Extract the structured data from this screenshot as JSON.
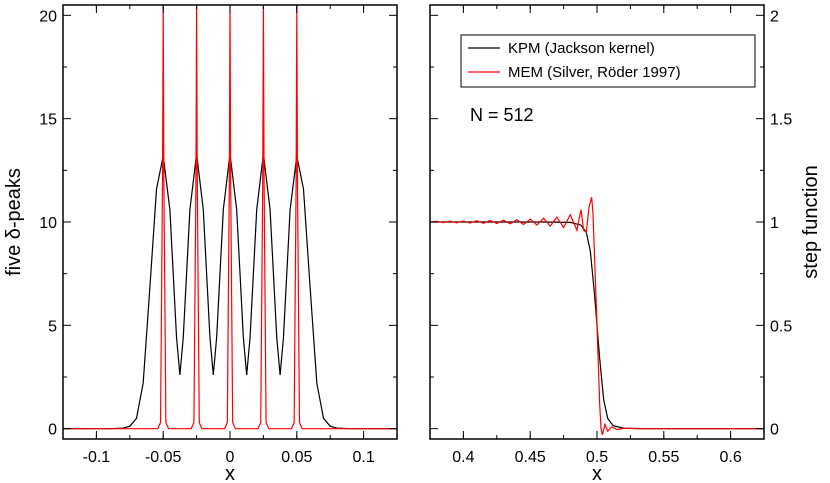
{
  "chart_data": [
    {
      "type": "line",
      "ylabel": "five δ-peaks",
      "xlabel": "x",
      "xlim": [
        -0.125,
        0.125
      ],
      "ylim": [
        -0.5,
        20.5
      ],
      "xticks": [
        -0.1,
        -0.05,
        0,
        0.05,
        0.1
      ],
      "xtick_labels": [
        "-0.1",
        "-0.05",
        "0",
        "0.05",
        "0.1"
      ],
      "yticks": [
        0,
        5,
        10,
        15,
        20
      ],
      "ytick_labels": [
        "0",
        "5",
        "10",
        "15",
        "20"
      ],
      "peak_positions": [
        -0.05,
        -0.025,
        0,
        0.025,
        0.05
      ],
      "series": [
        {
          "name": "KPM (Jackson kernel)",
          "color": "#000000",
          "x": [
            -0.125,
            -0.1,
            -0.09,
            -0.08,
            -0.075,
            -0.07,
            -0.065,
            -0.06,
            -0.055,
            -0.05,
            -0.045,
            -0.04,
            -0.0375,
            -0.035,
            -0.03,
            -0.025,
            -0.02,
            -0.015,
            -0.0125,
            -0.01,
            -0.005,
            0,
            0.005,
            0.01,
            0.0125,
            0.015,
            0.02,
            0.025,
            0.03,
            0.035,
            0.0375,
            0.04,
            0.045,
            0.05,
            0.055,
            0.06,
            0.065,
            0.07,
            0.075,
            0.08,
            0.09,
            0.1,
            0.125
          ],
          "values": [
            0,
            0,
            0,
            0.03,
            0.12,
            0.5,
            2.2,
            6.8,
            11.6,
            13.2,
            10.6,
            4.4,
            2.6,
            4.4,
            10.6,
            13.3,
            10.6,
            4.4,
            2.6,
            4.4,
            10.6,
            13.3,
            10.6,
            4.4,
            2.6,
            4.4,
            10.6,
            13.3,
            10.6,
            4.4,
            2.6,
            4.4,
            10.6,
            13.2,
            11.6,
            6.8,
            2.2,
            0.5,
            0.12,
            0.03,
            0,
            0,
            0
          ]
        },
        {
          "name": "MEM (Silver, Röder 1997)",
          "color": "#ff0000",
          "x": [
            -0.125,
            -0.054,
            -0.052,
            -0.0505,
            -0.05,
            -0.0495,
            -0.048,
            -0.046,
            -0.029,
            -0.027,
            -0.0255,
            -0.025,
            -0.0245,
            -0.023,
            -0.021,
            -0.004,
            -0.002,
            -0.0005,
            0,
            0.0005,
            0.002,
            0.004,
            0.021,
            0.023,
            0.0245,
            0.025,
            0.0255,
            0.027,
            0.029,
            0.046,
            0.048,
            0.0495,
            0.05,
            0.0505,
            0.052,
            0.054,
            0.125
          ],
          "values": [
            0,
            0,
            0.3,
            12,
            20.5,
            12,
            0.3,
            0,
            0,
            0.3,
            12,
            20.5,
            12,
            0.3,
            0,
            0,
            0.3,
            12,
            20.5,
            12,
            0.3,
            0,
            0,
            0.3,
            12,
            20.5,
            12,
            0.3,
            0,
            0,
            0.3,
            12,
            20.5,
            12,
            0.3,
            0,
            0
          ]
        }
      ]
    },
    {
      "type": "line",
      "ylabel": "step function",
      "xlabel": "x",
      "xlim": [
        0.375,
        0.625
      ],
      "ylim": [
        -0.05,
        2.05
      ],
      "xticks": [
        0.4,
        0.45,
        0.5,
        0.55,
        0.6
      ],
      "xtick_labels": [
        "0.4",
        "0.45",
        "0.5",
        "0.55",
        "0.6"
      ],
      "yticks": [
        0,
        0.5,
        1,
        1.5,
        2
      ],
      "ytick_labels": [
        "0",
        "0.5",
        "1",
        "1.5",
        "2"
      ],
      "annotation": "N = 512",
      "series": [
        {
          "name": "KPM (Jackson kernel)",
          "color": "#000000",
          "x": [
            0.375,
            0.46,
            0.48,
            0.488,
            0.492,
            0.495,
            0.498,
            0.5,
            0.502,
            0.505,
            0.508,
            0.512,
            0.52,
            0.54,
            0.625
          ],
          "values": [
            1,
            1,
            0.998,
            0.985,
            0.95,
            0.86,
            0.66,
            0.5,
            0.34,
            0.14,
            0.05,
            0.015,
            0.002,
            0,
            0
          ]
        },
        {
          "name": "MEM (Silver, Röder 1997)",
          "color": "#ff0000",
          "x": [
            0.375,
            0.38,
            0.385,
            0.39,
            0.395,
            0.4,
            0.405,
            0.41,
            0.415,
            0.42,
            0.425,
            0.43,
            0.435,
            0.44,
            0.445,
            0.45,
            0.455,
            0.46,
            0.465,
            0.47,
            0.475,
            0.48,
            0.485,
            0.488,
            0.49,
            0.492,
            0.494,
            0.496,
            0.497,
            0.498,
            0.5,
            0.502,
            0.503,
            0.504,
            0.506,
            0.508,
            0.511,
            0.515,
            0.52,
            0.53,
            0.625
          ],
          "values": [
            1,
            1.003,
            0.997,
            1.004,
            0.996,
            1.005,
            0.995,
            1.006,
            0.994,
            1.007,
            0.993,
            1.009,
            0.991,
            1.011,
            0.988,
            1.014,
            0.985,
            1.018,
            0.98,
            1.024,
            0.973,
            1.035,
            0.96,
            1.06,
            0.96,
            0.95,
            1.07,
            1.12,
            1.04,
            0.86,
            0.5,
            0.12,
            0.0,
            -0.03,
            0.02,
            -0.012,
            0.008,
            -0.004,
            0.002,
            0,
            0
          ]
        }
      ]
    }
  ],
  "legend": {
    "entries": [
      {
        "label": "KPM (Jackson kernel)",
        "color": "#000000"
      },
      {
        "label": "MEM (Silver, Röder 1997)",
        "color": "#ff0000"
      }
    ]
  }
}
